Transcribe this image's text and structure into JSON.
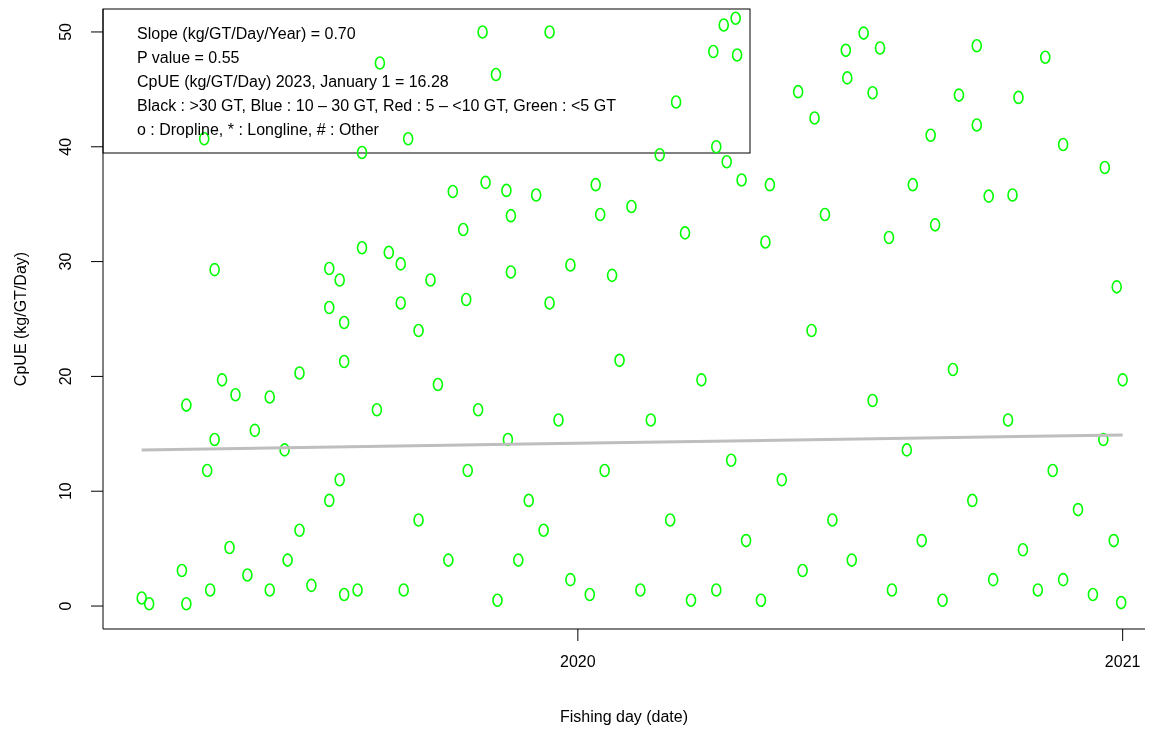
{
  "chart_data": {
    "type": "scatter",
    "xlabel": "Fishing day (date)",
    "ylabel": "CpUE (kg/GT/Day)",
    "annotations": [
      "Slope (kg/GT/Day/Year) = 0.70",
      "P value = 0.55",
      "CpUE (kg/GT/Day) 2023, January 1 = 16.28",
      "Black : >30 GT, Blue : 10 – 30 GT, Red : 5 – <10 GT, Green : <5 GT",
      "o : Dropline, * : Longline,  # : Other"
    ],
    "xlim": [
      "2019-02-16",
      "2021-01-16"
    ],
    "xticks": [
      {
        "value": "2020-01-01",
        "label": "2020"
      },
      {
        "value": "2021-01-01",
        "label": "2021"
      }
    ],
    "ylim": [
      -2,
      52
    ],
    "yticks": [
      0,
      10,
      20,
      30,
      40,
      50
    ],
    "marker": "circle",
    "series": [
      {
        "color": "#00ff00",
        "x": [
          "2019-03-14",
          "2019-03-19",
          "2019-04-10",
          "2019-04-13",
          "2019-04-13",
          "2019-04-25",
          "2019-04-27",
          "2019-04-29",
          "2019-05-02",
          "2019-05-02",
          "2019-05-07",
          "2019-05-16",
          "2019-05-12",
          "2019-05-29",
          "2019-06-08",
          "2019-06-08",
          "2019-06-18",
          "2019-06-28",
          "2019-06-28",
          "2019-07-18",
          "2019-07-18",
          "2019-07-25",
          "2019-07-28",
          "2019-07-28",
          "2019-07-28",
          "2019-08-09",
          "2019-08-09",
          "2019-08-21",
          "2019-08-27",
          "2019-09-04",
          "2019-09-04",
          "2019-09-09",
          "2019-09-06",
          "2019-09-16",
          "2019-09-24",
          "2019-09-29",
          "2019-10-09",
          "2019-10-16",
          "2019-10-18",
          "2019-10-29",
          "2019-10-31",
          "2019-11-07",
          "2019-11-14",
          "2019-11-17",
          "2019-11-17",
          "2019-12-13",
          "2019-12-13",
          "2019-12-04",
          "2019-12-27",
          "2020-01-13",
          "2020-01-16",
          "2020-01-24",
          "2020-02-06",
          "2020-02-25",
          "2020-03-07",
          "2020-03-13",
          "2020-04-01",
          "2020-04-03",
          "2020-04-08",
          "2020-04-16",
          "2020-04-17",
          "2020-04-20",
          "2020-04-10",
          "2020-05-06",
          "2020-05-09",
          "2020-05-28",
          "2020-06-08",
          "2020-06-15",
          "2020-06-29",
          "2020-06-30",
          "2020-07-11",
          "2020-07-22",
          "2020-07-17",
          "2020-07-28",
          "2020-08-13",
          "2020-08-25",
          "2020-08-28",
          "2020-09-13",
          "2020-09-25",
          "2020-09-25",
          "2020-10-03",
          "2020-10-19",
          "2020-10-23",
          "2020-11-10",
          "2020-11-22",
          "2020-12-20",
          "2020-12-28",
          "2021-01-01",
          "2019-07-18",
          "2019-08-06",
          "2019-08-19",
          "2019-09-16",
          "2019-10-06",
          "2019-10-19",
          "2019-10-26",
          "2019-11-08",
          "2019-11-15",
          "2019-11-22",
          "2019-11-29",
          "2019-12-09",
          "2019-12-19",
          "2019-12-27",
          "2020-01-09",
          "2020-01-19",
          "2020-01-29",
          "2020-02-12",
          "2020-02-19",
          "2020-03-03",
          "2020-03-17",
          "2020-03-24",
          "2020-04-03",
          "2020-04-13",
          "2020-04-23",
          "2020-05-03",
          "2020-05-17",
          "2020-05-31",
          "2020-06-06",
          "2020-06-20",
          "2020-07-03",
          "2020-07-17",
          "2020-07-30",
          "2020-08-09",
          "2020-08-19",
          "2020-09-02",
          "2020-09-09",
          "2020-09-22",
          "2020-10-06",
          "2020-10-16",
          "2020-10-26",
          "2020-11-05",
          "2020-11-15",
          "2020-11-22",
          "2020-12-02",
          "2020-12-12",
          "2020-12-19",
          "2020-12-26",
          "2020-12-31",
          "2019-05-24",
          "2019-06-20",
          "2019-07-06",
          "2019-07-25"
        ],
        "values": [
          0.7,
          0.2,
          3.1,
          17.5,
          0.2,
          40.7,
          11.8,
          1.4,
          29.3,
          14.5,
          19.7,
          18.4,
          5.1,
          15.3,
          18.2,
          1.4,
          13.6,
          20.3,
          6.6,
          29.4,
          26.0,
          28.4,
          24.7,
          21.3,
          1.0,
          31.2,
          39.5,
          47.3,
          30.8,
          29.8,
          26.4,
          40.7,
          1.4,
          24.0,
          28.4,
          19.3,
          36.1,
          32.8,
          26.7,
          50.0,
          36.9,
          46.3,
          36.2,
          29.1,
          34.0,
          50.0,
          26.4,
          35.8,
          29.7,
          36.7,
          34.1,
          28.8,
          34.8,
          39.3,
          43.9,
          32.5,
          48.3,
          40.0,
          50.6,
          51.2,
          48.0,
          37.1,
          38.7,
          31.7,
          36.7,
          44.8,
          42.5,
          34.1,
          48.4,
          46.0,
          49.9,
          48.6,
          44.7,
          32.1,
          36.7,
          41.0,
          33.2,
          44.5,
          48.8,
          41.9,
          35.7,
          35.8,
          44.3,
          47.8,
          40.2,
          38.2,
          27.8,
          19.7,
          9.2,
          1.4,
          17.1,
          7.5,
          4.0,
          11.8,
          17.1,
          0.5,
          14.5,
          4.0,
          9.2,
          6.6,
          16.2,
          2.3,
          1.0,
          11.8,
          21.4,
          1.4,
          16.2,
          7.5,
          0.5,
          19.7,
          1.4,
          12.7,
          5.7,
          0.5,
          11.0,
          3.1,
          24.0,
          7.5,
          4.0,
          17.9,
          1.4,
          13.6,
          5.7,
          0.5,
          20.6,
          9.2,
          2.3,
          16.2,
          4.9,
          1.4,
          11.8,
          2.3,
          8.4,
          1.0,
          14.5,
          5.7,
          0.3,
          2.7,
          4.0,
          1.8,
          11.0
        ]
      },
      {
        "type": "line",
        "marker": "none",
        "color": "#bebebe",
        "x": [
          "2019-03-14",
          "2021-01-01"
        ],
        "values": [
          13.6,
          14.9
        ]
      }
    ]
  }
}
